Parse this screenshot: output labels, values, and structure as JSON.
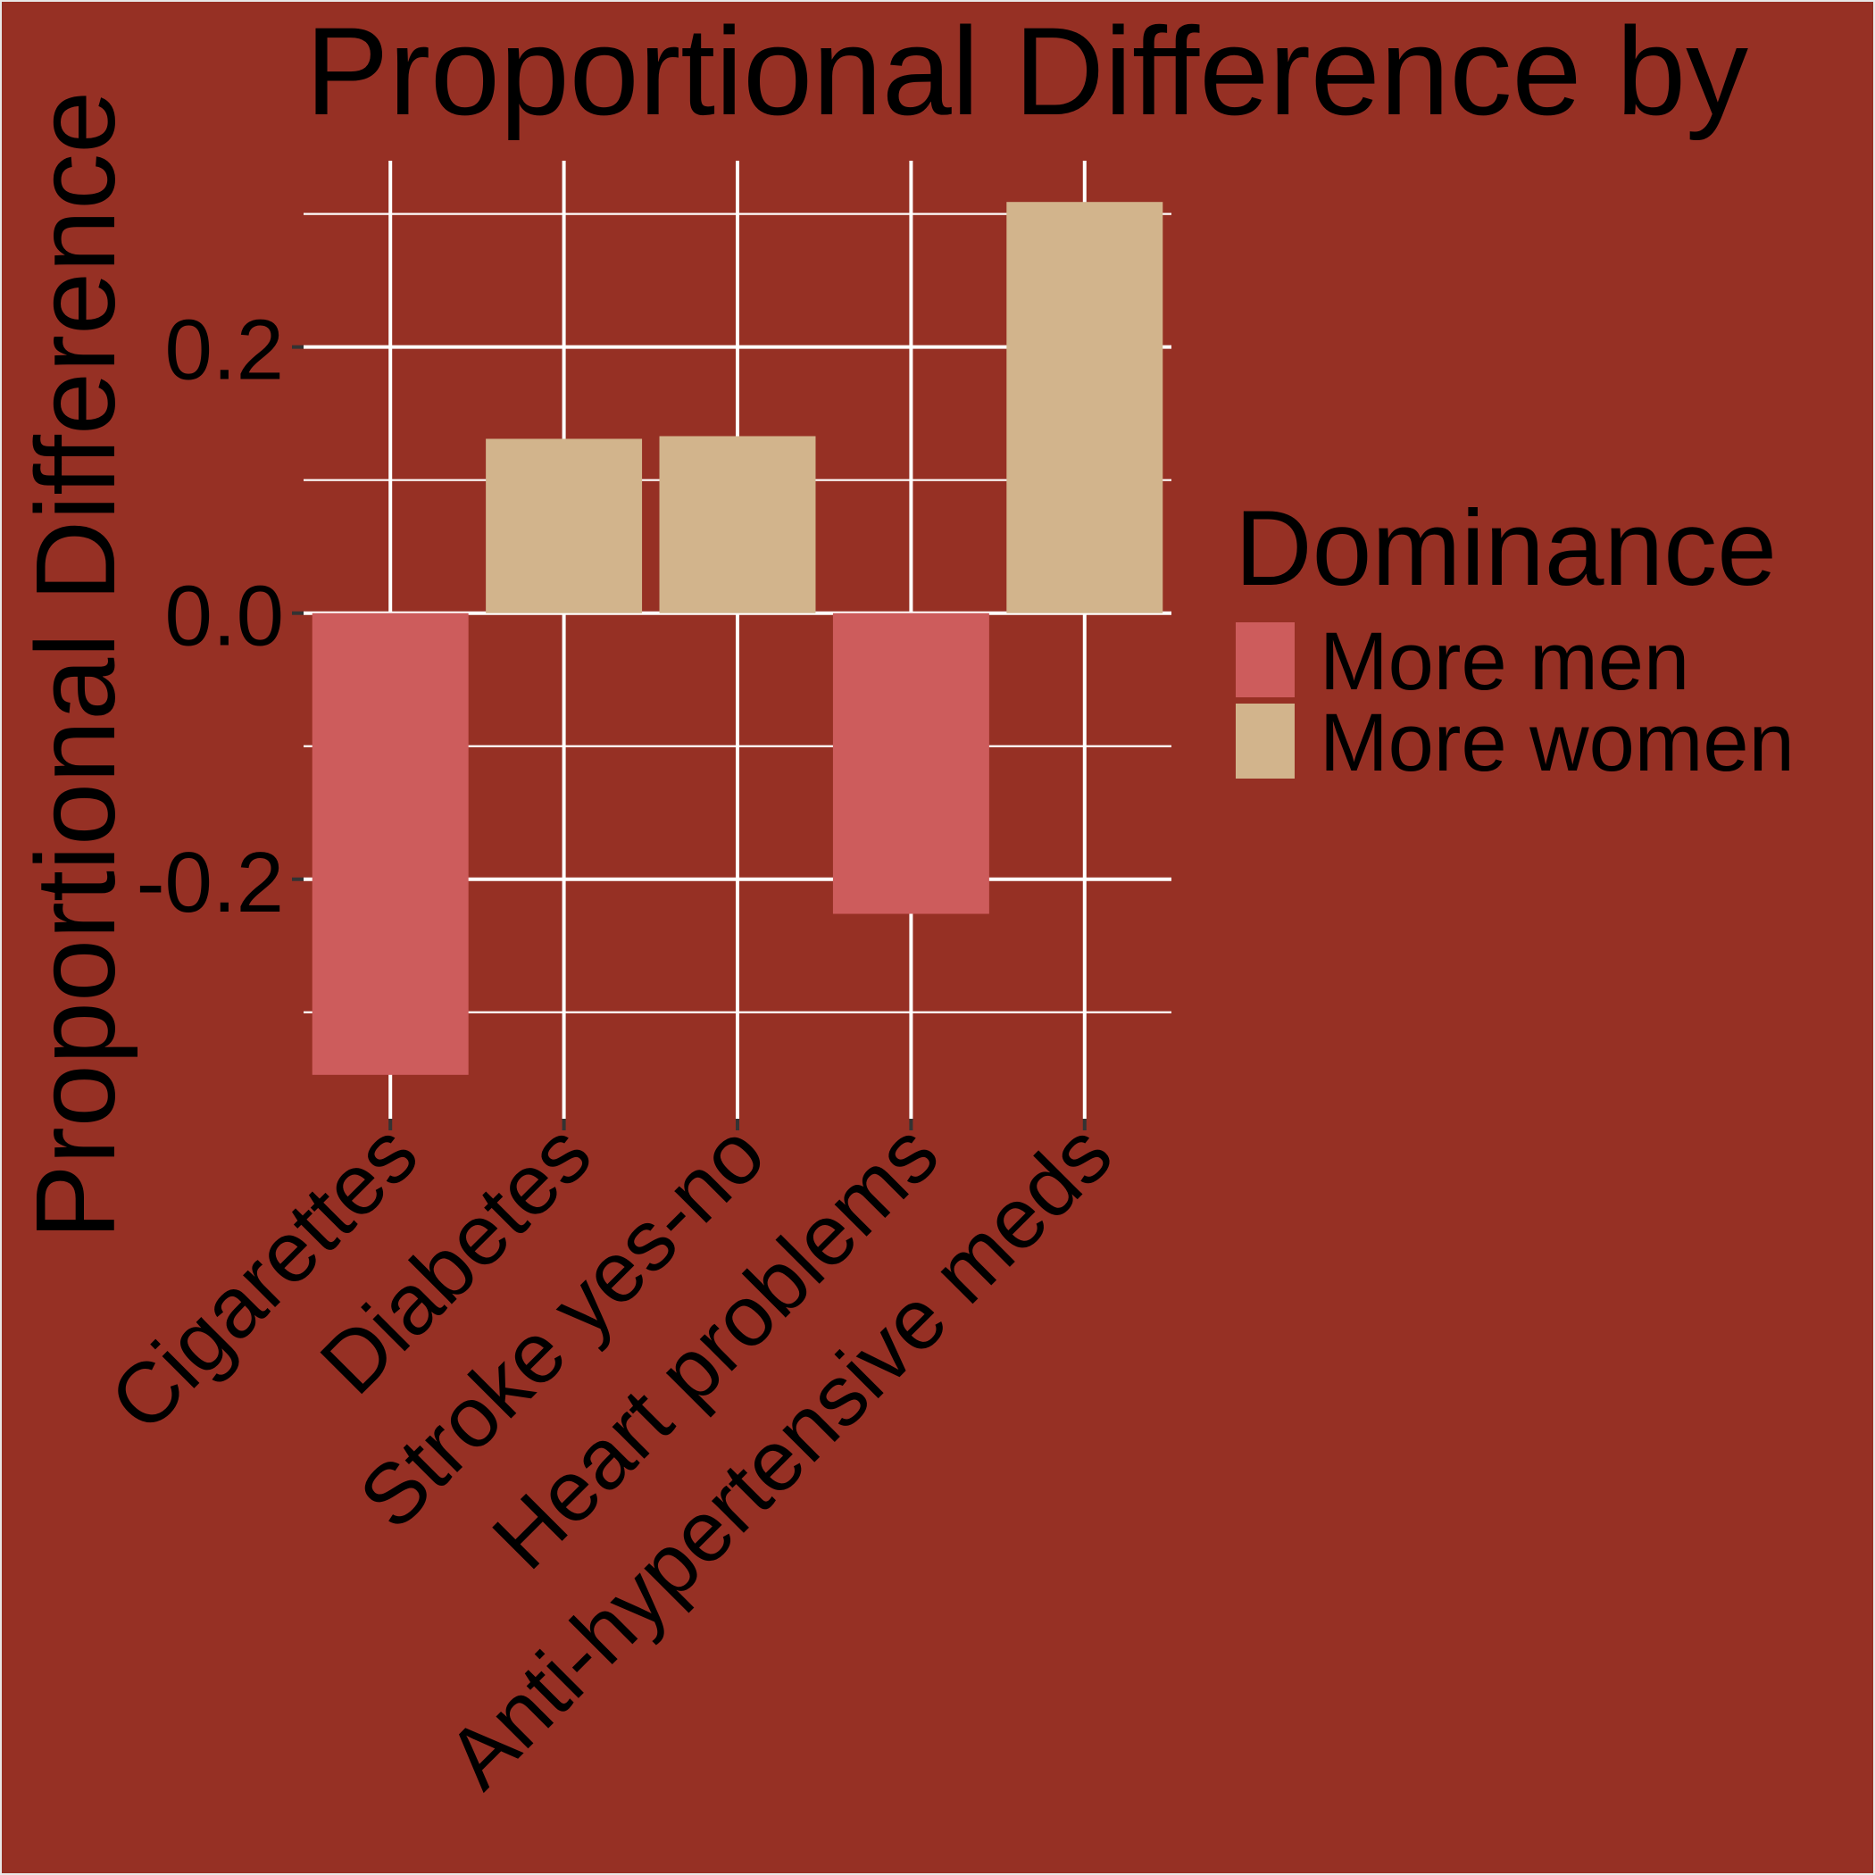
{
  "colors": {
    "background": "#963024",
    "border": "#e8e8e8",
    "grid": "#ffffff",
    "text": "#000000",
    "tick_mark": "#333333"
  },
  "chart_data": {
    "type": "bar",
    "title": "Proportional Difference by",
    "xlabel": "",
    "ylabel": "Proportional Difference",
    "categories": [
      "Cigarettes",
      "Diabetes",
      "Stroke yes-no",
      "Heart problems",
      "Anti-hypertensive meds"
    ],
    "values": [
      -0.347,
      0.131,
      0.133,
      -0.226,
      0.309
    ],
    "dominance": [
      "More men",
      "More women",
      "More women",
      "More men",
      "More women"
    ],
    "ylim": [
      -0.38,
      0.34
    ],
    "y_ticks": [
      -0.2,
      0.0,
      0.2
    ],
    "y_tick_labels": [
      "-0.2",
      "0.0",
      "0.2"
    ],
    "y_minor_gridlines": [
      -0.3,
      -0.1,
      0.1,
      0.3
    ],
    "grid": true,
    "legend": {
      "title": "Dominance",
      "placement": "right",
      "entries": [
        {
          "label": "More men",
          "color": "#cd5c5c"
        },
        {
          "label": "More women",
          "color": "#d2b48c"
        }
      ]
    }
  }
}
